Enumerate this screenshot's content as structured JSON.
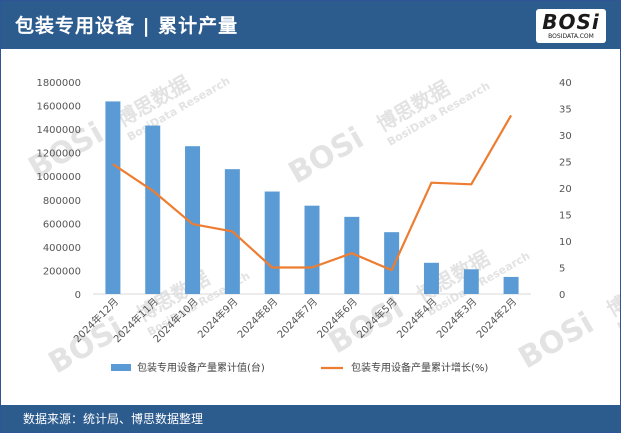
{
  "header": {
    "title": "包装专用设备 | 累计产量"
  },
  "logo": {
    "mark": "BOSi",
    "sub": "BOSIDATA.COM"
  },
  "footer": {
    "source": "数据来源：统计局、博思数据整理"
  },
  "watermark": {
    "brand": "BOSi",
    "cn": "博思数据",
    "en": "BosiData Research"
  },
  "colors": {
    "header": "#2c5b8e",
    "bar": "#5b9bd5",
    "line": "#ed7d31"
  },
  "chart_data": {
    "type": "bar",
    "categories": [
      "2024年12月",
      "2024年11月",
      "2024年10月",
      "2024年9月",
      "2024年8月",
      "2024年7月",
      "2024年6月",
      "2024年5月",
      "2024年4月",
      "2024年3月",
      "2024年2月"
    ],
    "series": [
      {
        "name": "包装专用设备产量累计值(台)",
        "type": "bar",
        "axis": "left",
        "values": [
          1635000,
          1430000,
          1255000,
          1060000,
          870000,
          750000,
          655000,
          525000,
          265000,
          210000,
          145000
        ]
      },
      {
        "name": "包装专用设备产量累计增长(%)",
        "type": "line",
        "axis": "right",
        "values": [
          24.5,
          19.5,
          13.2,
          11.8,
          5.0,
          5.0,
          7.7,
          4.5,
          21.0,
          20.7,
          33.7
        ]
      }
    ],
    "yticks_left": [
      "0",
      "200000",
      "400000",
      "600000",
      "800000",
      "1000000",
      "1200000",
      "1400000",
      "1600000",
      "1800000"
    ],
    "yticks_right": [
      "0",
      "5",
      "10",
      "15",
      "20",
      "25",
      "30",
      "35",
      "40"
    ],
    "ylim_left": [
      0,
      1800000
    ],
    "ylim_right": [
      0,
      40
    ],
    "grid": false,
    "legend": "bottom"
  }
}
